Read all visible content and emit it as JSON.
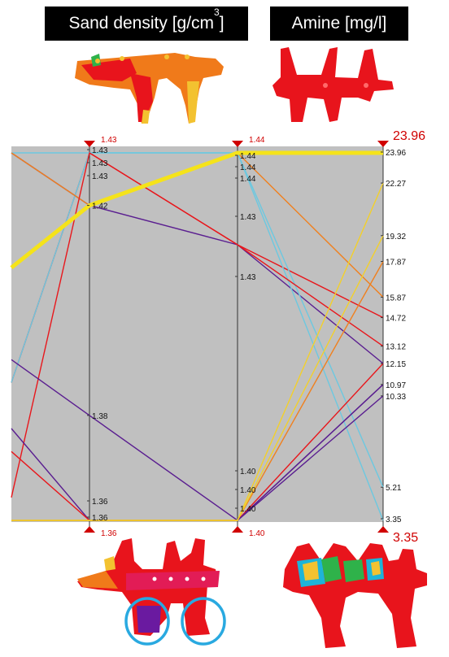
{
  "headers": {
    "left": {
      "text": "Sand density [g/cm",
      "sup": "3",
      "tail": "]"
    },
    "right": {
      "text": "Amine [mg/l]"
    }
  },
  "colors": {
    "plot_bg": "#c0c0c0",
    "axis_marker": "#d00000",
    "highlight": "#f5e31a",
    "cast_red": "#e8141c",
    "cast_orange": "#f07a1a",
    "cast_yellow": "#f3c230",
    "cast_purple": "#6a1aa0",
    "cast_green": "#2fb24a",
    "cast_cyan": "#1eb4d8",
    "circle": "#29a9e0"
  },
  "chart_data": {
    "type": "parallel-coordinates",
    "axes": [
      {
        "name": "axis-1",
        "max_label": "",
        "min_label": "",
        "ticks": []
      },
      {
        "name": "axis-2",
        "max_label": "1.43",
        "min_label": "1.36",
        "ticks": [
          "1.43",
          "1.43",
          "1.43",
          "1.42",
          "1.38",
          "1.36",
          "1.36"
        ]
      },
      {
        "name": "axis-3",
        "max_label": "1.44",
        "min_label": "1.40",
        "ticks": [
          "1.44",
          "1.44",
          "1.44",
          "1.43",
          "1.43",
          "1.40",
          "1.40",
          "1.40"
        ]
      },
      {
        "name": "axis-4",
        "max_label": "23.96",
        "min_label": "3.35",
        "ticks": [
          "23.96",
          "22.27",
          "19.32",
          "17.87",
          "15.87",
          "14.72",
          "13.12",
          "12.15",
          "10.97",
          "10.33",
          "5.21",
          "3.35"
        ]
      }
    ],
    "series": [
      {
        "color": "#f5e31a",
        "width": 5,
        "values": [
          1.415,
          1.42,
          1.44,
          23.96
        ],
        "highlight": true
      },
      {
        "color": "#e8171c",
        "width": 1.4,
        "values": [
          1.39,
          1.43,
          1.43,
          14.72
        ]
      },
      {
        "color": "#5a1e90",
        "width": 1.4,
        "values": [
          1.44,
          1.42,
          1.43,
          12.15
        ]
      },
      {
        "color": "#6cc8e0",
        "width": 1.4,
        "values": [
          1.44,
          1.43,
          1.44,
          5.21
        ]
      },
      {
        "color": "#6cc8e0",
        "width": 1.4,
        "values": [
          1.39,
          1.43,
          1.44,
          3.35
        ]
      },
      {
        "color": "#f0801e",
        "width": 1.4,
        "values": [
          1.44,
          1.42,
          1.44,
          15.87
        ]
      },
      {
        "color": "#e8171c",
        "width": 1.4,
        "values": [
          1.365,
          1.43,
          1.43,
          13.12
        ]
      },
      {
        "color": "#5a1e90",
        "width": 1.4,
        "values": [
          1.395,
          1.38,
          1.4,
          10.97
        ]
      },
      {
        "color": "#5a1e90",
        "width": 1.4,
        "values": [
          1.38,
          1.36,
          1.4,
          10.33
        ]
      },
      {
        "color": "#e8171c",
        "width": 1.4,
        "values": [
          1.375,
          1.36,
          1.4,
          12.15
        ]
      },
      {
        "color": "#5a1e90",
        "width": 1.4,
        "values": [
          1.36,
          1.36,
          1.4,
          10.97
        ]
      },
      {
        "color": "#f0801e",
        "width": 1.4,
        "values": [
          1.36,
          1.36,
          1.4,
          17.87
        ]
      },
      {
        "color": "#f3d02a",
        "width": 1.4,
        "values": [
          1.36,
          1.36,
          1.4,
          22.27
        ]
      },
      {
        "color": "#f3d02a",
        "width": 1.4,
        "values": [
          1.36,
          1.36,
          1.4,
          19.32
        ]
      }
    ]
  },
  "images": {
    "top_left": "casting-sand-density-top",
    "top_right": "casting-amine-top",
    "bottom_left": "casting-sand-density-bottom",
    "bottom_right": "casting-amine-bottom"
  }
}
